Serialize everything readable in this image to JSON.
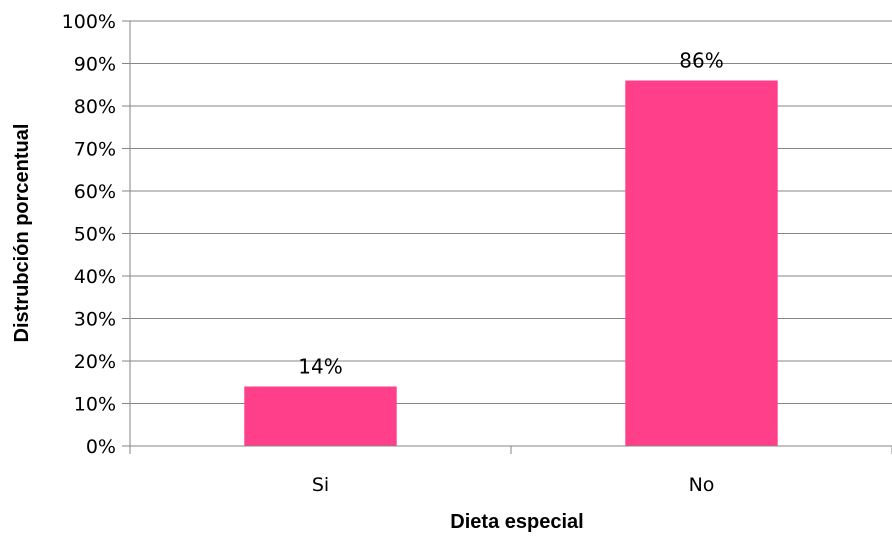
{
  "chart_data": {
    "type": "bar",
    "categories": [
      "Si",
      "No"
    ],
    "values": [
      14,
      86
    ],
    "data_labels": [
      "14%",
      "86%"
    ],
    "xlabel": "Dieta especial",
    "ylabel": "Distrubción porcentual",
    "ylim": [
      0,
      100
    ],
    "ytick_step": 10,
    "ytick_labels": [
      "0%",
      "10%",
      "20%",
      "30%",
      "40%",
      "50%",
      "60%",
      "70%",
      "80%",
      "90%",
      "100%"
    ],
    "grid": true,
    "legend": "none",
    "bar_color": "#ff3f8a"
  }
}
